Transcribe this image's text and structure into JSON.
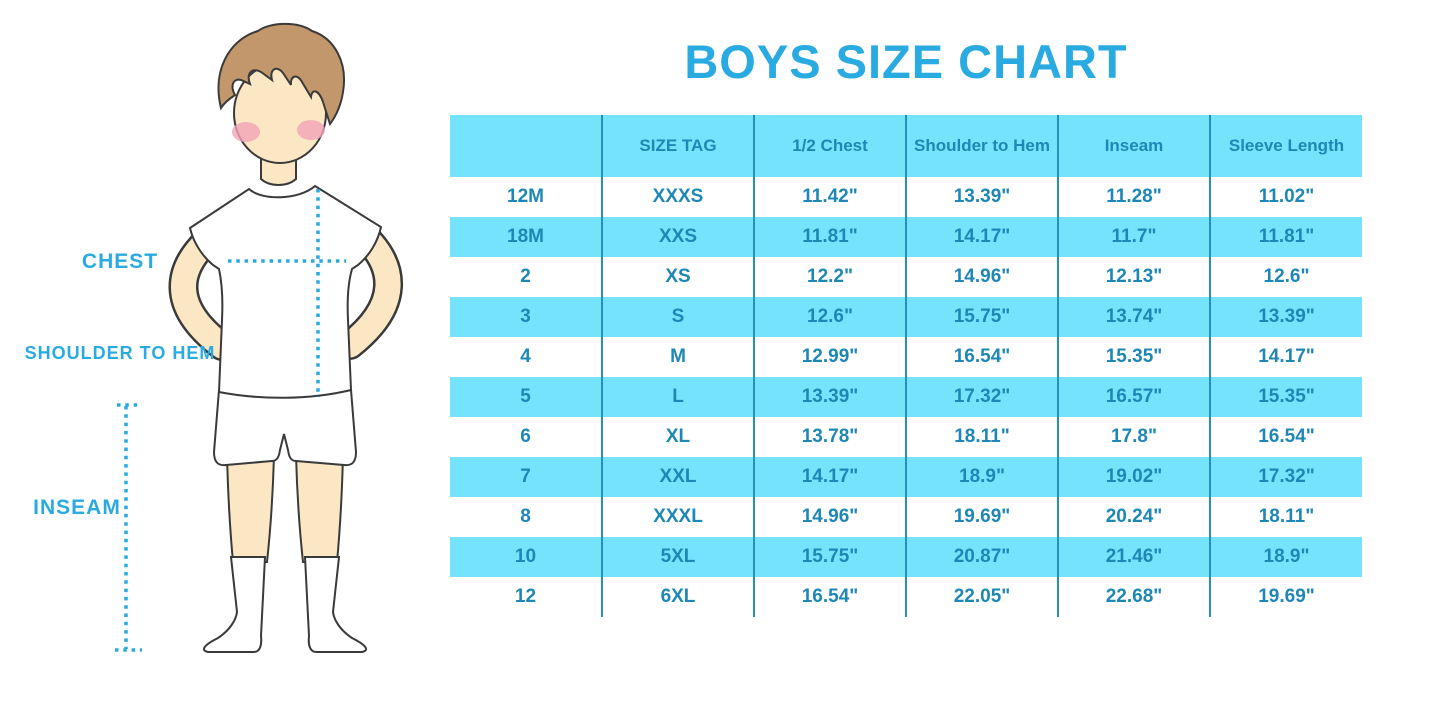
{
  "title": "BOYS SIZE CHART",
  "figure": {
    "chest_label": "CHEST",
    "shoulder_to_hem_label": "SHOULDER TO HEM",
    "inseam_label": "INSEAM"
  },
  "colors": {
    "accent": "#29ABE2",
    "row_cyan": "#76E3FC",
    "grid_line": "#2590BD",
    "table_text": "#1E87B6"
  },
  "chart_data": {
    "type": "table",
    "title": "BOYS SIZE CHART",
    "columns": [
      "",
      "SIZE TAG",
      "1/2 Chest",
      "Shoulder to Hem",
      "Inseam",
      "Sleeve Length"
    ],
    "rows": [
      [
        "12M",
        "XXXS",
        "11.42\"",
        "13.39\"",
        "11.28\"",
        "11.02\""
      ],
      [
        "18M",
        "XXS",
        "11.81\"",
        "14.17\"",
        "11.7\"",
        "11.81\""
      ],
      [
        "2",
        "XS",
        "12.2\"",
        "14.96\"",
        "12.13\"",
        "12.6\""
      ],
      [
        "3",
        "S",
        "12.6\"",
        "15.75\"",
        "13.74\"",
        "13.39\""
      ],
      [
        "4",
        "M",
        "12.99\"",
        "16.54\"",
        "15.35\"",
        "14.17\""
      ],
      [
        "5",
        "L",
        "13.39\"",
        "17.32\"",
        "16.57\"",
        "15.35\""
      ],
      [
        "6",
        "XL",
        "13.78\"",
        "18.11\"",
        "17.8\"",
        "16.54\""
      ],
      [
        "7",
        "XXL",
        "14.17\"",
        "18.9\"",
        "19.02\"",
        "17.32\""
      ],
      [
        "8",
        "XXXL",
        "14.96\"",
        "19.69\"",
        "20.24\"",
        "18.11\""
      ],
      [
        "10",
        "5XL",
        "15.75\"",
        "20.87\"",
        "21.46\"",
        "18.9\""
      ],
      [
        "12",
        "6XL",
        "16.54\"",
        "22.05\"",
        "22.68\"",
        "19.69\""
      ]
    ],
    "row_shading": "alternating white and cyan, first data row white",
    "grid": "vertical column dividers only",
    "legend_position": "none"
  }
}
